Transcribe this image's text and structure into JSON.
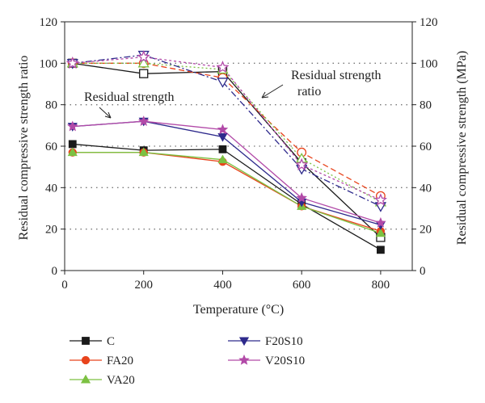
{
  "chart_data": {
    "type": "line",
    "title": "",
    "xlabel": "Temperature (°C)",
    "ylabel_left": "Residual compressive strength ratio",
    "ylabel_right": "Residual compressive strength (MPa)",
    "x": [
      20,
      200,
      400,
      600,
      800
    ],
    "x_ticks": [
      "0",
      "200",
      "400",
      "600",
      "800"
    ],
    "y_ticks": [
      "0",
      "20",
      "40",
      "60",
      "80",
      "100",
      "120"
    ],
    "xlim": [
      0,
      880
    ],
    "ylim": [
      0,
      120
    ],
    "ylim_right": [
      0,
      120
    ],
    "grid": "horizontal dotted",
    "annotations": {
      "strength": "Residual strength",
      "ratio_line1": "Residual strength",
      "ratio_line2": "ratio"
    },
    "series": [
      {
        "name": "C",
        "color": "#1a1a1a",
        "marker": "square",
        "strength": [
          61,
          58,
          58.5,
          32,
          10
        ],
        "ratio": [
          100,
          95,
          96,
          52,
          16
        ]
      },
      {
        "name": "FA20",
        "color": "#e8441c",
        "marker": "circle",
        "strength": [
          57,
          57,
          52.5,
          31,
          19
        ],
        "ratio": [
          100,
          100,
          93,
          57,
          36
        ]
      },
      {
        "name": "VA20",
        "color": "#7cc142",
        "marker": "triangle-up",
        "strength": [
          57,
          57,
          53.5,
          31,
          18
        ],
        "ratio": [
          100,
          100,
          97,
          54,
          33
        ]
      },
      {
        "name": "F20S10",
        "color": "#2e2a8c",
        "marker": "triangle-down",
        "strength": [
          69.5,
          72,
          64.5,
          33,
          22
        ],
        "ratio": [
          100,
          104,
          91,
          49,
          31
        ]
      },
      {
        "name": "V20S10",
        "color": "#b24aa8",
        "marker": "star",
        "strength": [
          69.5,
          72,
          68,
          35,
          23
        ],
        "ratio": [
          100,
          103,
          98,
          51,
          34
        ]
      }
    ]
  }
}
